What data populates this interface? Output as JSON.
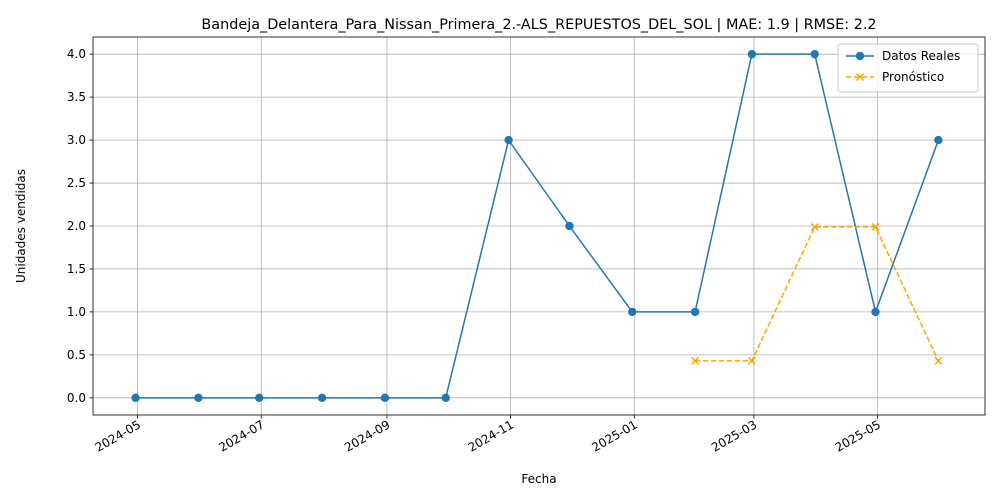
{
  "chart_data": {
    "type": "line",
    "title": "Bandeja_Delantera_Para_Nissan_Primera_2.-ALS_REPUESTOS_DEL_SOL | MAE: 1.9 | RMSE: 2.2",
    "xlabel": "Fecha",
    "ylabel": "Unidades vendidas",
    "xlim": [
      "2024-04-09",
      "2025-06-23"
    ],
    "ylim": [
      -0.2,
      4.2
    ],
    "x_ticks": [
      "2024-05",
      "2024-07",
      "2024-09",
      "2024-11",
      "2025-01",
      "2025-03",
      "2025-05"
    ],
    "y_ticks": [
      "0.0",
      "0.5",
      "1.0",
      "1.5",
      "2.0",
      "2.5",
      "3.0",
      "3.5",
      "4.0"
    ],
    "grid": true,
    "legend_position": "top-right",
    "series": [
      {
        "name": "Datos Reales",
        "color": "#1f77b4",
        "style": "solid",
        "marker": "circle",
        "x": [
          "2024-04-30",
          "2024-05-31",
          "2024-06-30",
          "2024-07-31",
          "2024-08-31",
          "2024-09-30",
          "2024-10-31",
          "2024-11-30",
          "2024-12-31",
          "2025-01-31",
          "2025-02-28",
          "2025-03-31",
          "2025-04-30",
          "2025-05-31"
        ],
        "values": [
          0,
          0,
          0,
          0,
          0,
          0,
          3,
          2,
          1,
          1,
          4,
          4,
          1,
          3
        ]
      },
      {
        "name": "Pronóstico",
        "color": "#ffa500",
        "style": "dashed",
        "marker": "x",
        "x": [
          "2025-01-31",
          "2025-02-28",
          "2025-03-31",
          "2025-04-30",
          "2025-05-31"
        ],
        "values": [
          0.43,
          0.43,
          1.99,
          1.99,
          0.43
        ]
      }
    ]
  }
}
